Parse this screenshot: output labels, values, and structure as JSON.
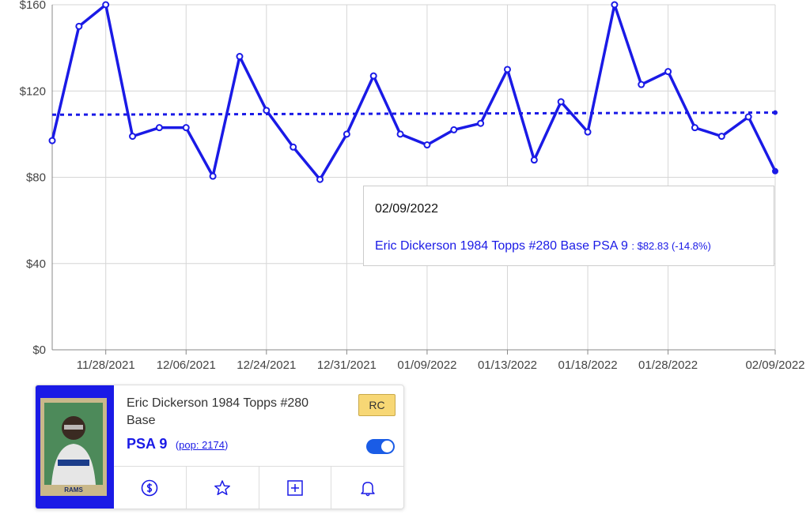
{
  "chart_data": {
    "type": "line",
    "categories": [
      null,
      null,
      "11/28/2021",
      null,
      null,
      "12/06/2021",
      null,
      null,
      "12/24/2021",
      null,
      null,
      "12/31/2021",
      null,
      null,
      "01/09/2022",
      null,
      null,
      "01/13/2022",
      null,
      null,
      "01/18/2022",
      null,
      null,
      "01/28/2022",
      null,
      null,
      null,
      "02/09/2022"
    ],
    "series": [
      {
        "name": "Eric Dickerson 1984 Topps #280 Base PSA 9",
        "color": "#1a1ae6",
        "values": [
          97,
          150,
          160,
          99,
          103,
          103,
          80.5,
          136,
          111,
          94,
          79,
          100,
          127,
          100,
          95,
          102,
          105,
          130,
          88,
          115,
          101,
          160,
          123,
          129,
          103,
          99,
          108,
          82.83
        ]
      }
    ],
    "reference_line": {
      "values": [
        109,
        110
      ],
      "color": "#1a1ae6"
    },
    "ylim": [
      0,
      160
    ],
    "yticks": [
      {
        "value": 0,
        "label": "$0"
      },
      {
        "value": 40,
        "label": "$40"
      },
      {
        "value": 80,
        "label": "$80"
      },
      {
        "value": 120,
        "label": "$120"
      },
      {
        "value": 160,
        "label": "$160"
      }
    ],
    "grid": true,
    "tooltip": {
      "date": "02/09/2022",
      "name": "Eric Dickerson 1984 Topps #280 Base PSA 9",
      "detail": ": $82.83 (-14.8%)"
    }
  },
  "card": {
    "image_text": "RAMS",
    "title": "Eric Dickerson 1984 Topps #280 Base",
    "badge": "RC",
    "grade": "PSA 9",
    "pop_open": "(",
    "pop_link": "pop: 2174",
    "pop_close": ")"
  }
}
